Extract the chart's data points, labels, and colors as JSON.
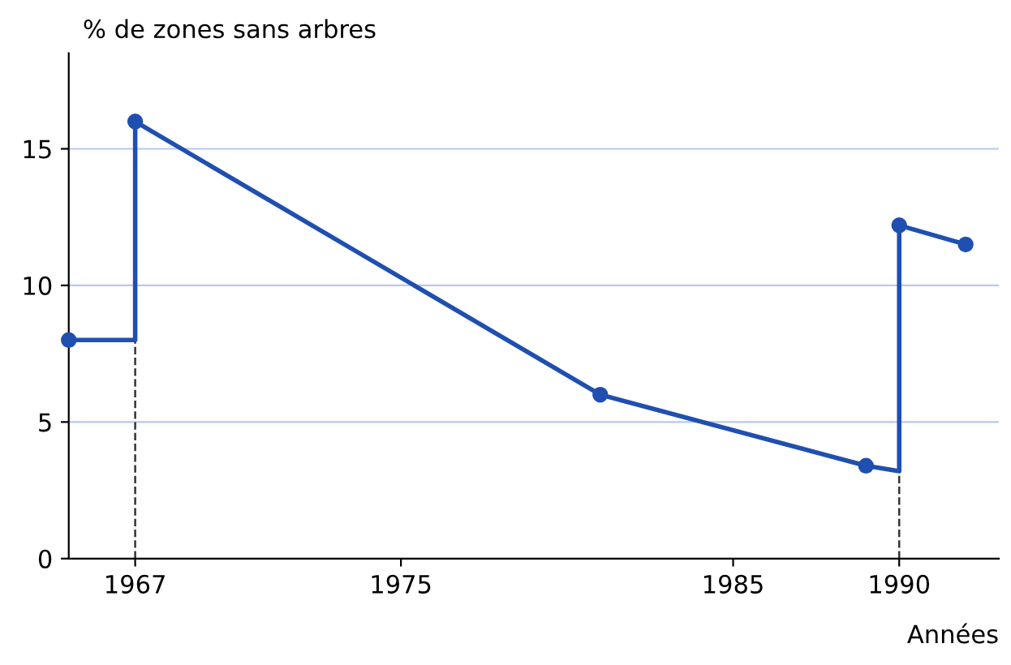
{
  "chart_data": {
    "type": "line",
    "ylabel": "% de zones sans arbres",
    "xlabel": "Années",
    "series": [
      {
        "color": "#1f4fb0",
        "marker": "none",
        "x": [
          1965,
          1967,
          1967,
          1981,
          1989,
          1990,
          1990,
          1992
        ],
        "values": [
          8,
          8,
          16,
          6,
          3.4,
          3.2,
          12.2,
          11.5
        ]
      },
      {
        "type": "scatter",
        "color": "#1f4fb0",
        "marker": "circle",
        "x": [
          1965,
          1967,
          1981,
          1989,
          1990,
          1992
        ],
        "values": [
          8,
          16,
          6,
          3.4,
          12.2,
          11.5
        ]
      }
    ],
    "xlim": [
      1965,
      1993
    ],
    "xticks": [
      1967,
      1975,
      1985,
      1990
    ],
    "ylim": [
      0,
      18.5
    ],
    "yticks": [
      0,
      5,
      10,
      15
    ],
    "grid": "y",
    "ref_lines": [
      {
        "axis": "x",
        "value": 1967,
        "line_style": "dashed",
        "color": "#333333"
      },
      {
        "axis": "x",
        "value": 1990,
        "line_style": "dashed",
        "color": "#333333"
      }
    ]
  }
}
